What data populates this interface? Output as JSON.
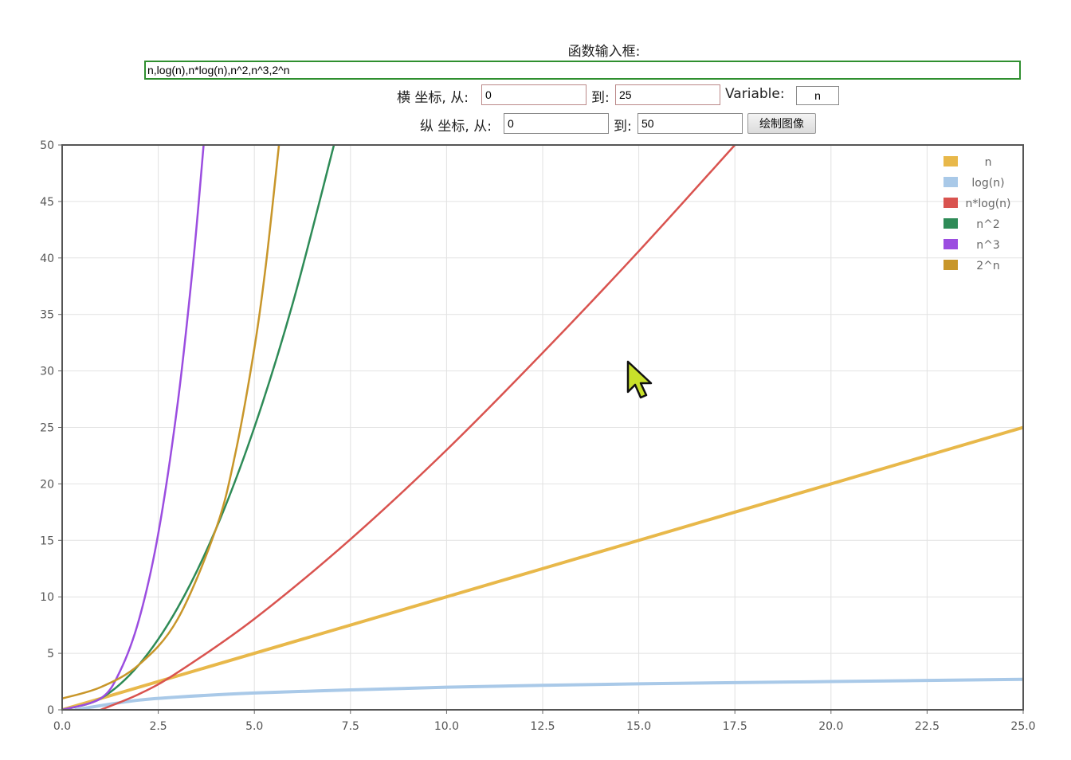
{
  "form": {
    "title": "函数输入框:",
    "func_value": "n,log(n),n*log(n),n^2,n^3,2^n",
    "x_label": "横 坐标, 从:",
    "x_from": "0",
    "x_to_label": "到:",
    "x_to": "25",
    "var_label": "Variable:",
    "var_value": "n",
    "y_label": "纵 坐标, 从:",
    "y_from": "0",
    "y_to_label": "到:",
    "y_to": "50",
    "draw_button": "绘制图像"
  },
  "chart_data": {
    "type": "line",
    "xlim": [
      0,
      25
    ],
    "ylim": [
      0,
      50
    ],
    "grid": true,
    "legend_position": "top-right",
    "x_ticks": [
      "0.0",
      "2.5",
      "5.0",
      "7.5",
      "10.0",
      "12.5",
      "15.0",
      "17.5",
      "20.0",
      "22.5",
      "25.0"
    ],
    "y_ticks": [
      "0",
      "5",
      "10",
      "15",
      "20",
      "25",
      "30",
      "35",
      "40",
      "45",
      "50"
    ],
    "series": [
      {
        "name": "n",
        "color": "#e8b84a",
        "x": [
          0,
          25
        ],
        "y": [
          0,
          25
        ]
      },
      {
        "name": "log(n)",
        "color": "#a9c9e8",
        "x": [
          0.35,
          1,
          2,
          3,
          5,
          7.5,
          10,
          12.5,
          15,
          17.5,
          20,
          22.5,
          25
        ],
        "y": [
          0,
          0.37,
          0.86,
          1.13,
          1.49,
          1.76,
          2.0,
          2.17,
          2.3,
          2.41,
          2.5,
          2.6,
          2.7
        ]
      },
      {
        "name": "n*log(n)",
        "color": "#d9534f",
        "x": [
          1,
          2,
          3,
          5,
          7.5,
          10,
          12.5,
          15,
          17.5
        ],
        "y": [
          0,
          1.39,
          3.3,
          8.05,
          15.1,
          23.0,
          31.6,
          40.6,
          50.0
        ]
      },
      {
        "name": "n^2",
        "color": "#2e8b57",
        "x": [
          0,
          1,
          2,
          3,
          4,
          5,
          6,
          7.07
        ],
        "y": [
          0,
          1,
          4,
          9,
          16,
          25,
          36,
          50
        ]
      },
      {
        "name": "n^3",
        "color": "#9b4de0",
        "x": [
          0,
          1,
          1.5,
          2,
          2.5,
          3,
          3.4,
          3.68
        ],
        "y": [
          0,
          1,
          3.38,
          8,
          15.6,
          27,
          39.3,
          50
        ]
      },
      {
        "name": "2^n",
        "color": "#c8962a",
        "x": [
          0,
          1,
          2,
          3,
          4,
          4.5,
          5,
          5.3,
          5.64
        ],
        "y": [
          1,
          2,
          4,
          8,
          16,
          22.6,
          32,
          39.4,
          50
        ]
      }
    ]
  },
  "cursor": {
    "color": "#c8e02a"
  }
}
